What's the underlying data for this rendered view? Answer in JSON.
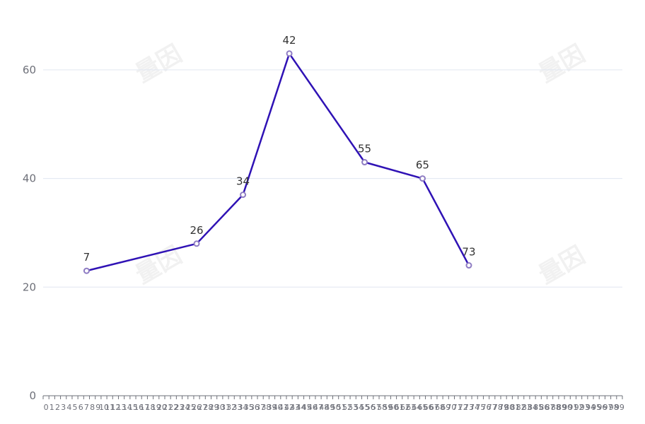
{
  "chart_data": {
    "type": "line",
    "title": "",
    "xlabel": "",
    "ylabel": "",
    "x_categories": [
      "0",
      "1",
      "2",
      "3",
      "4",
      "5",
      "6",
      "7",
      "8",
      "9",
      "10",
      "11",
      "12",
      "13",
      "14",
      "15",
      "16",
      "17",
      "18",
      "19",
      "20",
      "21",
      "22",
      "23",
      "24",
      "25",
      "26",
      "27",
      "28",
      "29",
      "30",
      "31",
      "32",
      "33",
      "34",
      "35",
      "36",
      "37",
      "38",
      "39",
      "40",
      "41",
      "42",
      "43",
      "44",
      "45",
      "46",
      "47",
      "48",
      "49",
      "50",
      "51",
      "52",
      "53",
      "54",
      "55",
      "56",
      "57",
      "58",
      "59",
      "60",
      "61",
      "62",
      "63",
      "64",
      "65",
      "66",
      "67",
      "68",
      "69",
      "70",
      "71",
      "72",
      "73",
      "74",
      "75",
      "76",
      "77",
      "78",
      "79",
      "80",
      "81",
      "82",
      "83",
      "84",
      "85",
      "86",
      "87",
      "88",
      "89",
      "90",
      "91",
      "92",
      "93",
      "94",
      "95",
      "96",
      "97",
      "98",
      "99"
    ],
    "points": [
      {
        "x": 7,
        "y": 23
      },
      {
        "x": 26,
        "y": 28
      },
      {
        "x": 34,
        "y": 37
      },
      {
        "x": 42,
        "y": 63
      },
      {
        "x": 55,
        "y": 43
      },
      {
        "x": 65,
        "y": 40
      },
      {
        "x": 73,
        "y": 24
      }
    ],
    "data_labels": [
      "7",
      "26",
      "34",
      "42",
      "55",
      "65",
      "73"
    ],
    "ylim": [
      0,
      70
    ],
    "y_ticks": [
      0,
      20,
      40,
      60
    ],
    "y_tick_labels": [
      "0",
      "20",
      "40",
      "60"
    ],
    "grid": true,
    "legend": "none",
    "colors": {
      "line": "#2f12b5",
      "marker_fill": "#ffffff",
      "marker_stroke": "#8e7cc3"
    }
  },
  "watermark_text": "量因"
}
